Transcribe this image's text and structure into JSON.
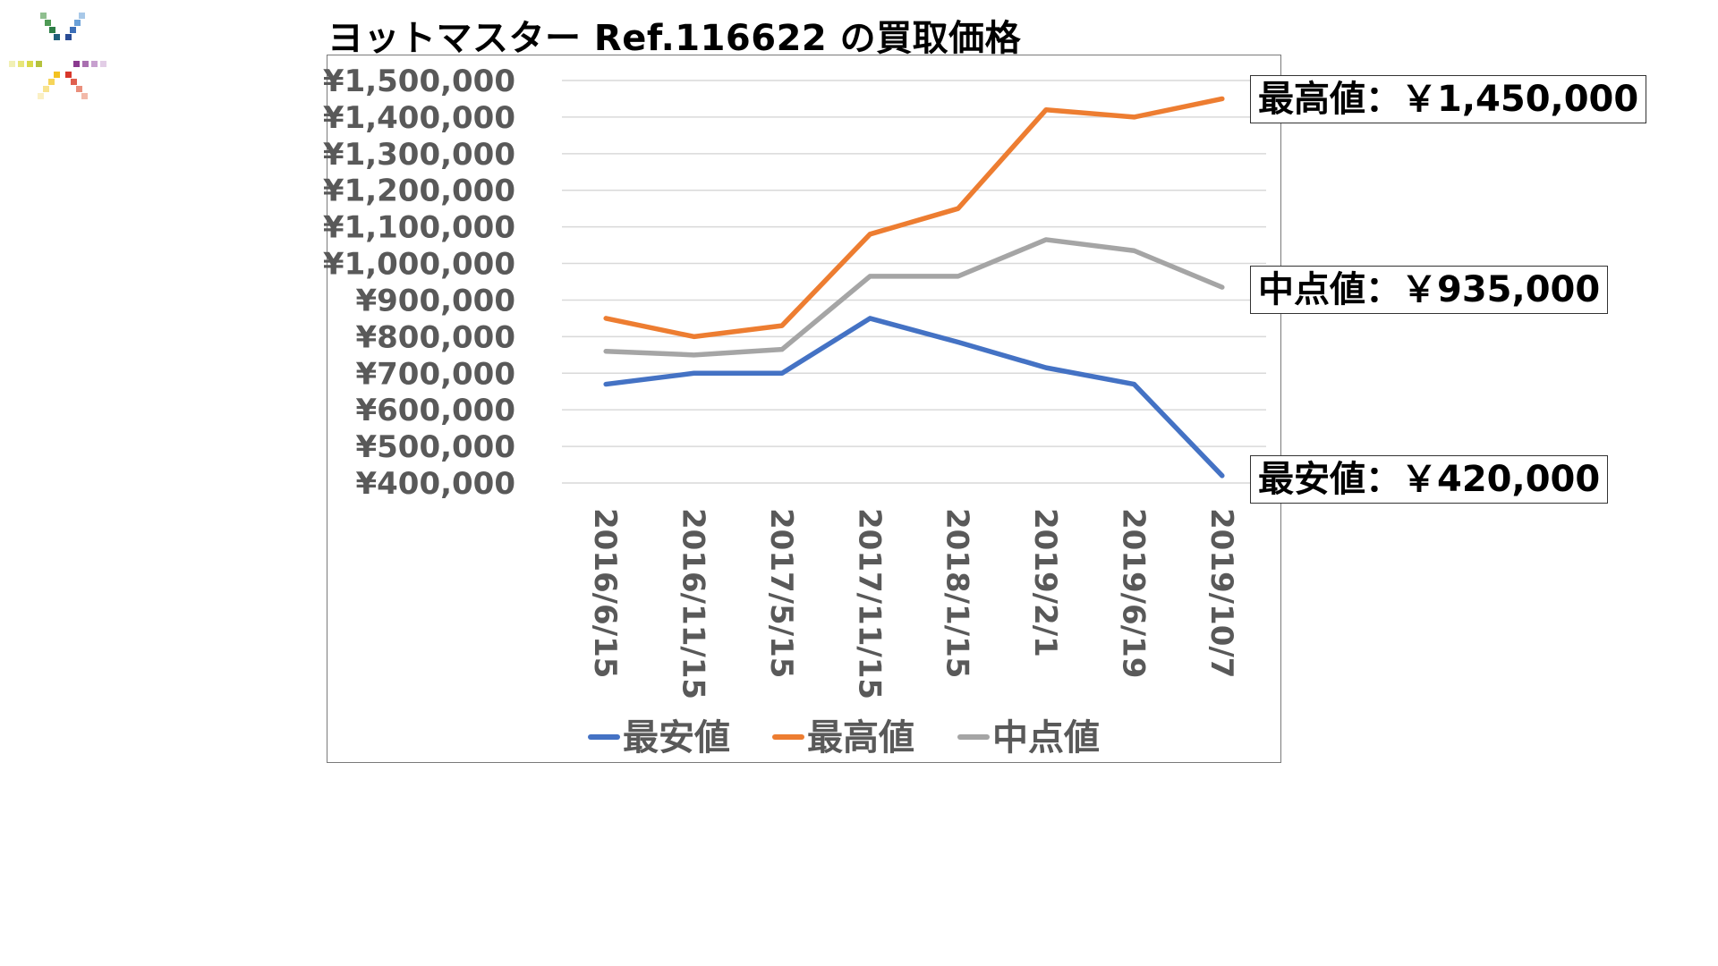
{
  "title": "ヨットマスター Ref.116622 の買取価格",
  "logo": {
    "icon": "color-burst-logo"
  },
  "callouts": {
    "max": "最高値：￥1,450,000",
    "mid": "中点値：￥935,000",
    "min": "最安値：￥420,000"
  },
  "chart_data": {
    "type": "line",
    "categories": [
      "2016/6/15",
      "2016/11/15",
      "2017/5/15",
      "2017/11/15",
      "2018/1/15",
      "2019/2/1",
      "2019/6/19",
      "2019/10/7"
    ],
    "series": [
      {
        "name": "最安値",
        "color": "#4472c4",
        "values": [
          670000,
          700000,
          700000,
          850000,
          785000,
          715000,
          670000,
          420000
        ]
      },
      {
        "name": "最高値",
        "color": "#ed7d31",
        "values": [
          850000,
          800000,
          830000,
          1080000,
          1150000,
          1420000,
          1400000,
          1450000
        ]
      },
      {
        "name": "中点値",
        "color": "#a5a5a5",
        "values": [
          760000,
          750000,
          765000,
          965000,
          965000,
          1065000,
          1035000,
          935000
        ]
      }
    ],
    "yticks": [
      "¥400,000",
      "¥500,000",
      "¥600,000",
      "¥700,000",
      "¥800,000",
      "¥900,000",
      "¥1,000,000",
      "¥1,100,000",
      "¥1,200,000",
      "¥1,300,000",
      "¥1,400,000",
      "¥1,500,000"
    ],
    "ylim": [
      400000,
      1500000
    ],
    "grid": true,
    "legend": "bottom"
  }
}
